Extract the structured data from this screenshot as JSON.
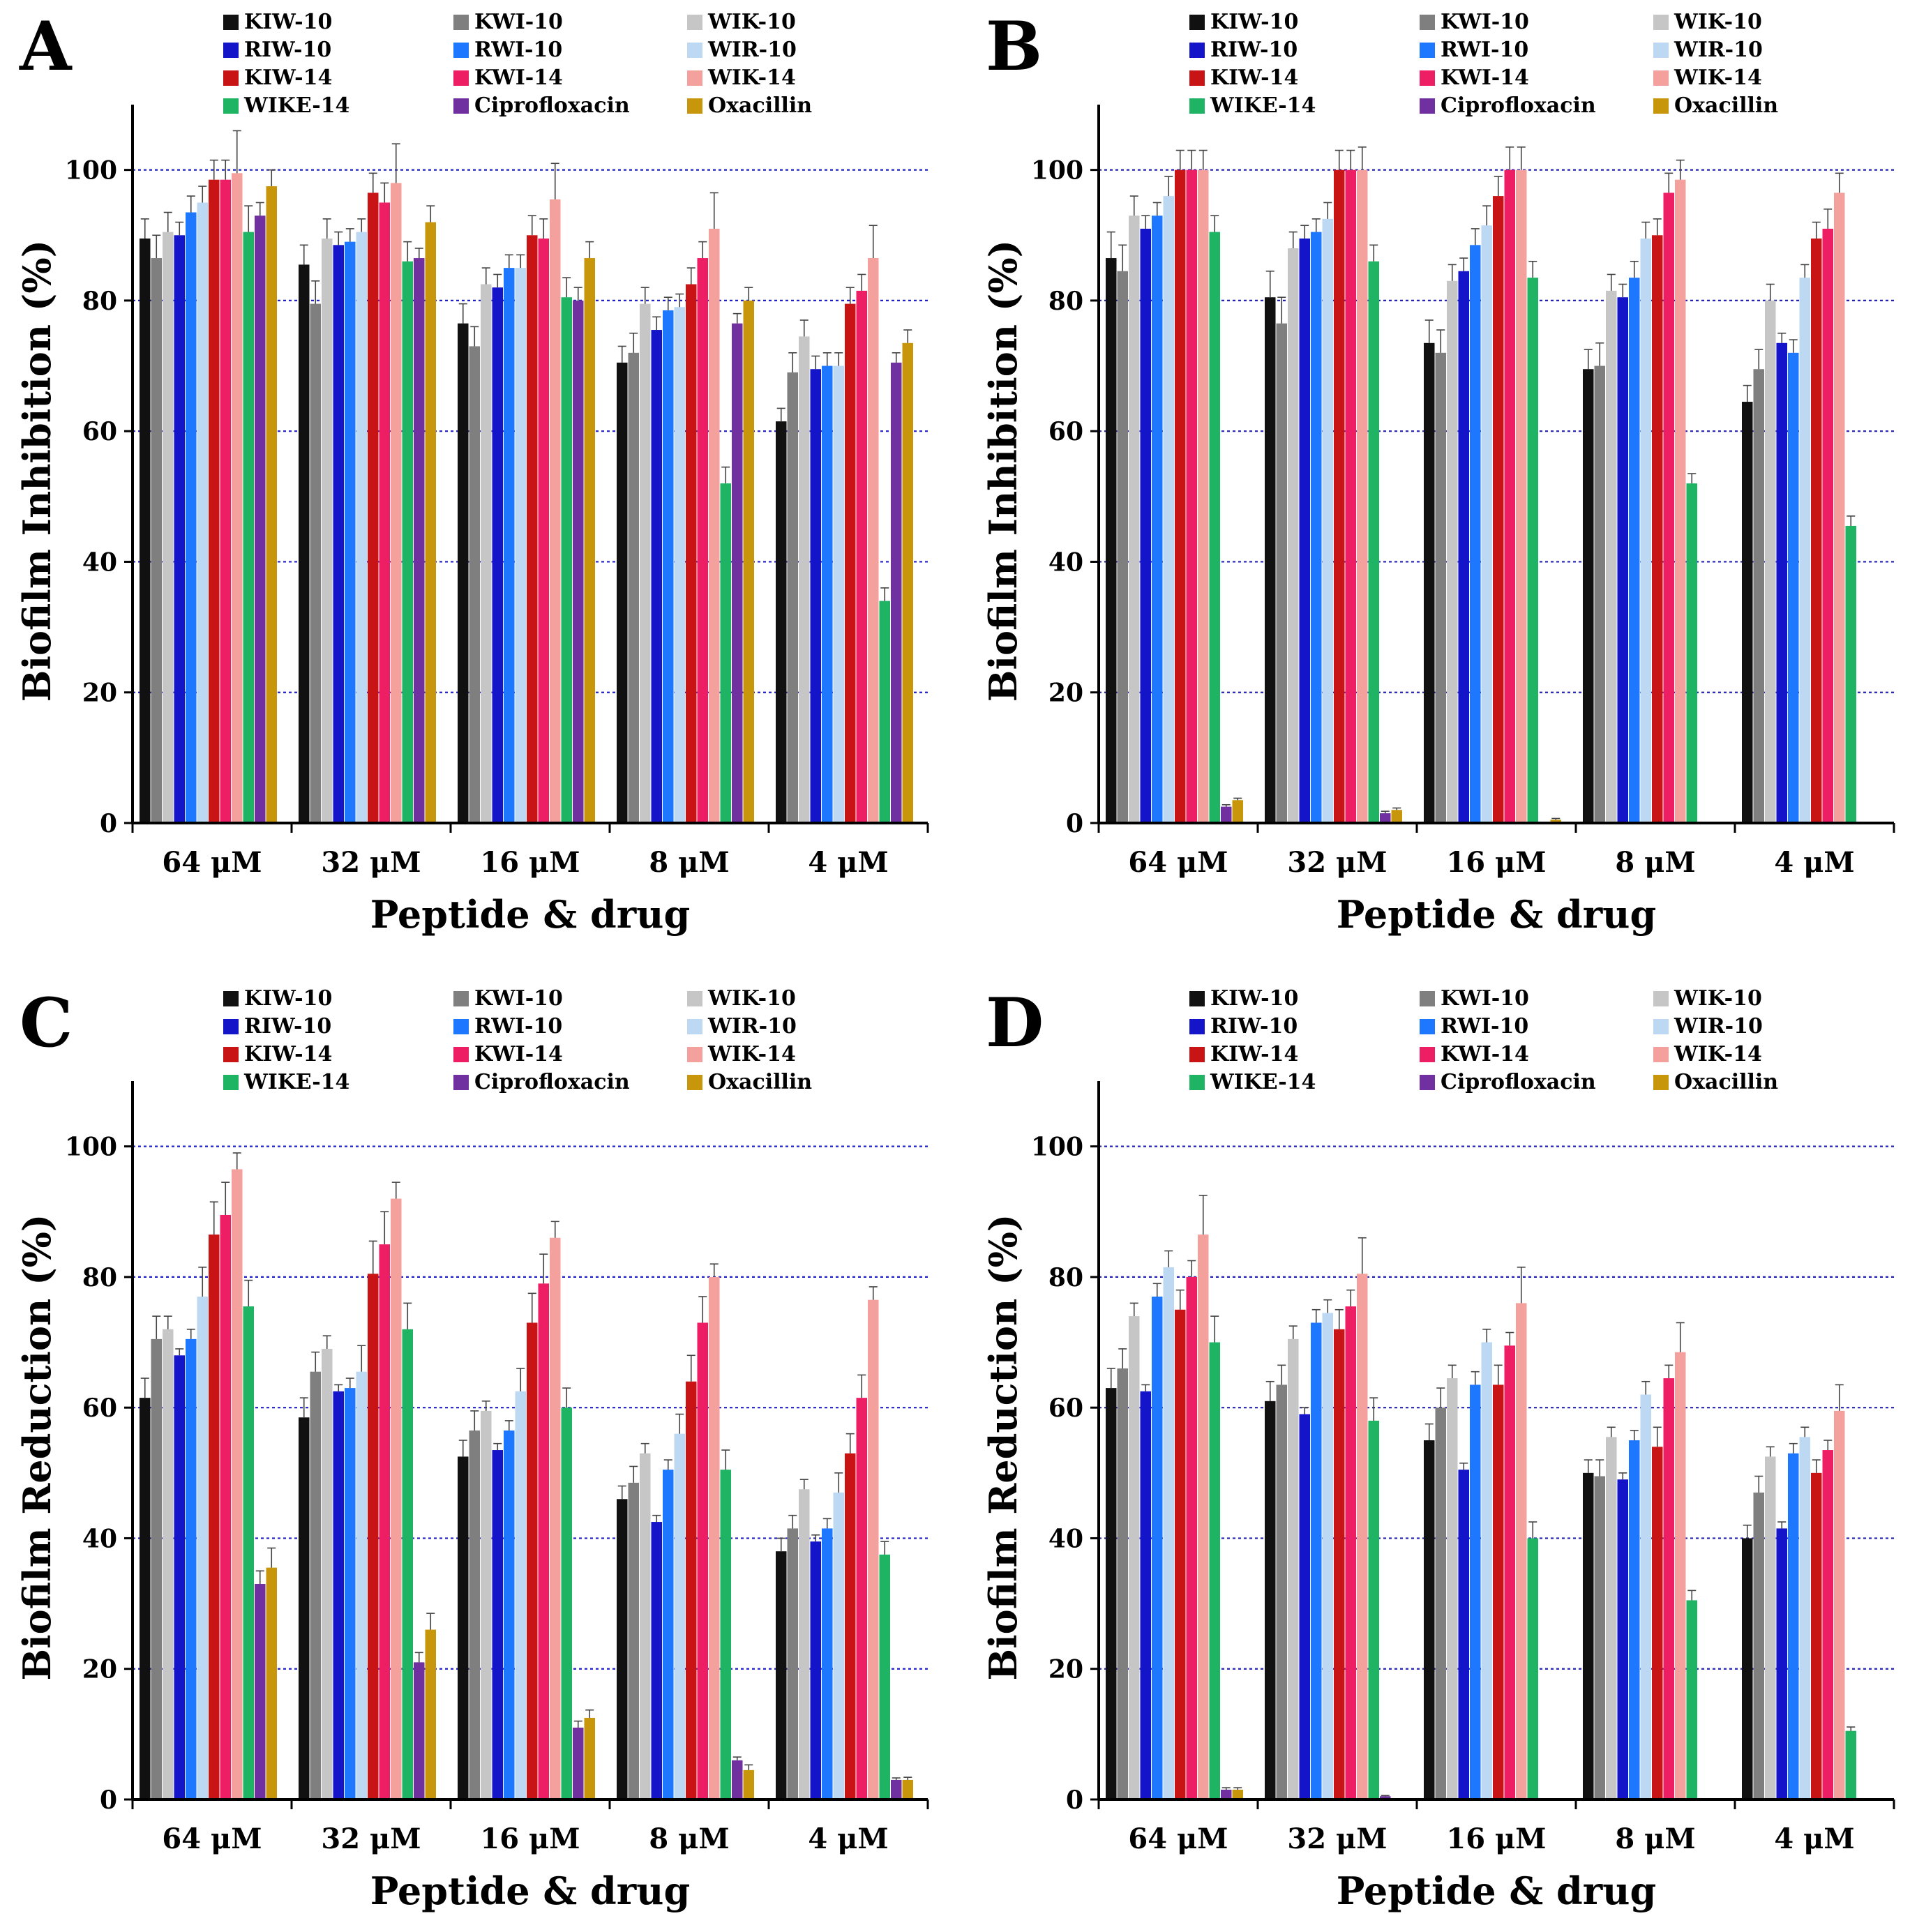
{
  "series_styles": [
    {
      "name": "KIW-10",
      "color": "#111111"
    },
    {
      "name": "KWI-10",
      "color": "#7f7f7f"
    },
    {
      "name": "WIK-10",
      "color": "#c6c6c6"
    },
    {
      "name": "RIW-10",
      "color": "#1414c8"
    },
    {
      "name": "RWI-10",
      "color": "#1e78ff"
    },
    {
      "name": "WIR-10",
      "color": "#bcd8f2"
    },
    {
      "name": "KIW-14",
      "color": "#c81414"
    },
    {
      "name": "KWI-14",
      "color": "#ee1e64"
    },
    {
      "name": "WIK-14",
      "color": "#f4a09c"
    },
    {
      "name": "WIKE-14",
      "color": "#1eb464"
    },
    {
      "name": "Ciprofloxacin",
      "color": "#7030a0"
    },
    {
      "name": "Oxacillin",
      "color": "#c8960a"
    }
  ],
  "gridline_color": "#2020c0",
  "chart_data": [
    {
      "panel": "A",
      "type": "bar",
      "ylabel": "Biofilm Inhibition (%)",
      "xlabel": "Peptide & drug",
      "categories": [
        "64 μM",
        "32 μM",
        "16 μM",
        "8 μM",
        "4 μM"
      ],
      "ylim": [
        0,
        110
      ],
      "yticks": [
        "0",
        "20",
        "40",
        "60",
        "80",
        "100"
      ],
      "gridlines": [
        20,
        40,
        60,
        80,
        100
      ],
      "series": [
        {
          "name": "KIW-10",
          "values": [
            89.5,
            85.5,
            76.5,
            70.5,
            61.5
          ],
          "errors": [
            3,
            3,
            3,
            2.5,
            2
          ]
        },
        {
          "name": "KWI-10",
          "values": [
            86.5,
            79.5,
            73,
            72,
            69
          ],
          "errors": [
            3.5,
            3.5,
            3,
            3,
            3
          ]
        },
        {
          "name": "WIK-10",
          "values": [
            90.5,
            89.5,
            82.5,
            79.5,
            74.5
          ],
          "errors": [
            3,
            3,
            2.5,
            2.5,
            2.5
          ]
        },
        {
          "name": "RIW-10",
          "values": [
            90,
            88.5,
            82,
            75.5,
            69.5
          ],
          "errors": [
            2,
            2,
            2,
            2,
            2
          ]
        },
        {
          "name": "RWI-10",
          "values": [
            93.5,
            89,
            85,
            78.5,
            70
          ],
          "errors": [
            2.5,
            2,
            2,
            2,
            2
          ]
        },
        {
          "name": "WIR-10",
          "values": [
            95,
            90.5,
            85,
            79,
            70
          ],
          "errors": [
            2.5,
            2,
            2,
            2,
            2
          ]
        },
        {
          "name": "KIW-14",
          "values": [
            98.5,
            96.5,
            90,
            82.5,
            79.5
          ],
          "errors": [
            3,
            3,
            3,
            2.5,
            2.5
          ]
        },
        {
          "name": "KWI-14",
          "values": [
            98.5,
            95,
            89.5,
            86.5,
            81.5
          ],
          "errors": [
            3,
            3,
            3,
            2.5,
            2.5
          ]
        },
        {
          "name": "WIK-14",
          "values": [
            99.5,
            98,
            95.5,
            91,
            86.5
          ],
          "errors": [
            6.5,
            6,
            5.5,
            5.5,
            5
          ]
        },
        {
          "name": "WIKE-14",
          "values": [
            90.5,
            86,
            80.5,
            52,
            34
          ],
          "errors": [
            4,
            3,
            3,
            2.5,
            2
          ]
        },
        {
          "name": "Ciprofloxacin",
          "values": [
            93,
            86.5,
            80,
            76.5,
            70.5
          ],
          "errors": [
            2,
            1.5,
            2,
            1.5,
            1.5
          ]
        },
        {
          "name": "Oxacillin",
          "values": [
            97.5,
            92,
            86.5,
            80,
            73.5
          ],
          "errors": [
            2.5,
            2.5,
            2.5,
            2,
            2
          ]
        }
      ]
    },
    {
      "panel": "B",
      "type": "bar",
      "ylabel": "Biofilm Inhibition (%)",
      "xlabel": "Peptide & drug",
      "categories": [
        "64 μM",
        "32 μM",
        "16 μM",
        "8 μM",
        "4 μM"
      ],
      "ylim": [
        0,
        110
      ],
      "yticks": [
        "0",
        "20",
        "40",
        "60",
        "80",
        "100"
      ],
      "gridlines": [
        20,
        40,
        60,
        80,
        100
      ],
      "series": [
        {
          "name": "KIW-10",
          "values": [
            86.5,
            80.5,
            73.5,
            69.5,
            64.5
          ],
          "errors": [
            4,
            4,
            3.5,
            3,
            2.5
          ]
        },
        {
          "name": "KWI-10",
          "values": [
            84.5,
            76.5,
            72,
            70,
            69.5
          ],
          "errors": [
            4,
            4,
            3.5,
            3.5,
            3
          ]
        },
        {
          "name": "WIK-10",
          "values": [
            93,
            88,
            83,
            81.5,
            80
          ],
          "errors": [
            3,
            2.5,
            2.5,
            2.5,
            2.5
          ]
        },
        {
          "name": "RIW-10",
          "values": [
            91,
            89.5,
            84.5,
            80.5,
            73.5
          ],
          "errors": [
            2,
            2,
            2,
            2,
            1.5
          ]
        },
        {
          "name": "RWI-10",
          "values": [
            93,
            90.5,
            88.5,
            83.5,
            72
          ],
          "errors": [
            2,
            2,
            2.5,
            2.5,
            2
          ]
        },
        {
          "name": "WIR-10",
          "values": [
            96,
            92.5,
            91.5,
            89.5,
            83.5
          ],
          "errors": [
            3,
            2.5,
            3,
            2.5,
            2
          ]
        },
        {
          "name": "KIW-14",
          "values": [
            100,
            100,
            96,
            90,
            89.5
          ],
          "errors": [
            3,
            3,
            3,
            2.5,
            2.5
          ]
        },
        {
          "name": "KWI-14",
          "values": [
            100,
            100,
            100,
            96.5,
            91
          ],
          "errors": [
            3,
            3,
            3.5,
            3,
            3
          ]
        },
        {
          "name": "WIK-14",
          "values": [
            100,
            100,
            100,
            98.5,
            96.5
          ],
          "errors": [
            3,
            3.5,
            3.5,
            3,
            3
          ]
        },
        {
          "name": "WIKE-14",
          "values": [
            90.5,
            86,
            83.5,
            52,
            45.5
          ],
          "errors": [
            2.5,
            2.5,
            2.5,
            1.5,
            1.5
          ]
        },
        {
          "name": "Ciprofloxacin",
          "values": [
            2.5,
            1.5,
            0,
            0,
            0
          ],
          "errors": [
            0.3,
            0.3,
            0,
            0,
            0
          ]
        },
        {
          "name": "Oxacillin",
          "values": [
            3.5,
            2,
            0.5,
            0,
            0
          ],
          "errors": [
            0.3,
            0.3,
            0.2,
            0,
            0
          ]
        }
      ]
    },
    {
      "panel": "C",
      "type": "bar",
      "ylabel": "Biofilm Reduction (%)",
      "xlabel": "Peptide & drug",
      "categories": [
        "64 μM",
        "32 μM",
        "16 μM",
        "8 μM",
        "4 μM"
      ],
      "ylim": [
        0,
        110
      ],
      "yticks": [
        "0",
        "20",
        "40",
        "60",
        "80",
        "100"
      ],
      "gridlines": [
        20,
        40,
        60,
        80,
        100
      ],
      "series": [
        {
          "name": "KIW-10",
          "values": [
            61.5,
            58.5,
            52.5,
            46,
            38
          ],
          "errors": [
            3,
            3,
            2.5,
            2,
            2
          ]
        },
        {
          "name": "KWI-10",
          "values": [
            70.5,
            65.5,
            56.5,
            48.5,
            41.5
          ],
          "errors": [
            3.5,
            3,
            3,
            2.5,
            2
          ]
        },
        {
          "name": "WIK-10",
          "values": [
            72,
            69,
            59.5,
            53,
            47.5
          ],
          "errors": [
            2,
            2,
            1.5,
            1.5,
            1.5
          ]
        },
        {
          "name": "RIW-10",
          "values": [
            68,
            62.5,
            53.5,
            42.5,
            39.5
          ],
          "errors": [
            1,
            1,
            1,
            1,
            1
          ]
        },
        {
          "name": "RWI-10",
          "values": [
            70.5,
            63,
            56.5,
            50.5,
            41.5
          ],
          "errors": [
            1.5,
            1.5,
            1.5,
            1.5,
            1.5
          ]
        },
        {
          "name": "WIR-10",
          "values": [
            77,
            65.5,
            62.5,
            56,
            47
          ],
          "errors": [
            4.5,
            4,
            3.5,
            3,
            3
          ]
        },
        {
          "name": "KIW-14",
          "values": [
            86.5,
            80.5,
            73,
            64,
            53
          ],
          "errors": [
            5,
            5,
            4.5,
            4,
            3
          ]
        },
        {
          "name": "KWI-14",
          "values": [
            89.5,
            85,
            79,
            73,
            61.5
          ],
          "errors": [
            5,
            5,
            4.5,
            4,
            3.5
          ]
        },
        {
          "name": "WIK-14",
          "values": [
            96.5,
            92,
            86,
            80,
            76.5
          ],
          "errors": [
            2.5,
            2.5,
            2.5,
            2,
            2
          ]
        },
        {
          "name": "WIKE-14",
          "values": [
            75.5,
            72,
            60,
            50.5,
            37.5
          ],
          "errors": [
            4,
            4,
            3,
            3,
            2
          ]
        },
        {
          "name": "Ciprofloxacin",
          "values": [
            33,
            21,
            11,
            6,
            3
          ],
          "errors": [
            2,
            1.5,
            1,
            0.5,
            0.3
          ]
        },
        {
          "name": "Oxacillin",
          "values": [
            35.5,
            26,
            12.5,
            4.5,
            3
          ],
          "errors": [
            3,
            2.5,
            1.2,
            0.8,
            0.4
          ]
        }
      ]
    },
    {
      "panel": "D",
      "type": "bar",
      "ylabel": "Biofilm Reduction (%)",
      "xlabel": "Peptide & drug",
      "categories": [
        "64 μM",
        "32 μM",
        "16 μM",
        "8 μM",
        "4 μM"
      ],
      "ylim": [
        0,
        110
      ],
      "yticks": [
        "0",
        "20",
        "40",
        "60",
        "80",
        "100"
      ],
      "gridlines": [
        20,
        40,
        60,
        80,
        100
      ],
      "series": [
        {
          "name": "KIW-10",
          "values": [
            63,
            61,
            55,
            50,
            40
          ],
          "errors": [
            3,
            3,
            2.5,
            2,
            2
          ]
        },
        {
          "name": "KWI-10",
          "values": [
            66,
            63.5,
            60,
            49.5,
            47
          ],
          "errors": [
            3,
            3,
            3,
            2.5,
            2.5
          ]
        },
        {
          "name": "WIK-10",
          "values": [
            74,
            70.5,
            64.5,
            55.5,
            52.5
          ],
          "errors": [
            2,
            2,
            2,
            1.5,
            1.5
          ]
        },
        {
          "name": "RIW-10",
          "values": [
            62.5,
            59,
            50.5,
            49,
            41.5
          ],
          "errors": [
            1,
            1,
            1,
            1,
            1
          ]
        },
        {
          "name": "RWI-10",
          "values": [
            77,
            73,
            63.5,
            55,
            53
          ],
          "errors": [
            2,
            2,
            2,
            1.5,
            1.5
          ]
        },
        {
          "name": "WIR-10",
          "values": [
            81.5,
            74.5,
            70,
            62,
            55.5
          ],
          "errors": [
            2.5,
            2,
            2,
            2,
            1.5
          ]
        },
        {
          "name": "KIW-14",
          "values": [
            75,
            72,
            63.5,
            54,
            50
          ],
          "errors": [
            3,
            3,
            3,
            3,
            2
          ]
        },
        {
          "name": "KWI-14",
          "values": [
            80,
            75.5,
            69.5,
            64.5,
            53.5
          ],
          "errors": [
            2.5,
            2.5,
            2,
            2,
            1.5
          ]
        },
        {
          "name": "WIK-14",
          "values": [
            86.5,
            80.5,
            76,
            68.5,
            59.5
          ],
          "errors": [
            6,
            5.5,
            5.5,
            4.5,
            4
          ]
        },
        {
          "name": "WIKE-14",
          "values": [
            70,
            58,
            40,
            30.5,
            10.5
          ],
          "errors": [
            4,
            3.5,
            2.5,
            1.5,
            0.6
          ]
        },
        {
          "name": "Ciprofloxacin",
          "values": [
            1.5,
            0.5,
            0,
            0,
            0
          ],
          "errors": [
            0.3,
            0.1,
            0,
            0,
            0
          ]
        },
        {
          "name": "Oxacillin",
          "values": [
            1.5,
            0,
            0,
            0,
            0
          ],
          "errors": [
            0.3,
            0,
            0,
            0,
            0
          ]
        }
      ]
    }
  ]
}
